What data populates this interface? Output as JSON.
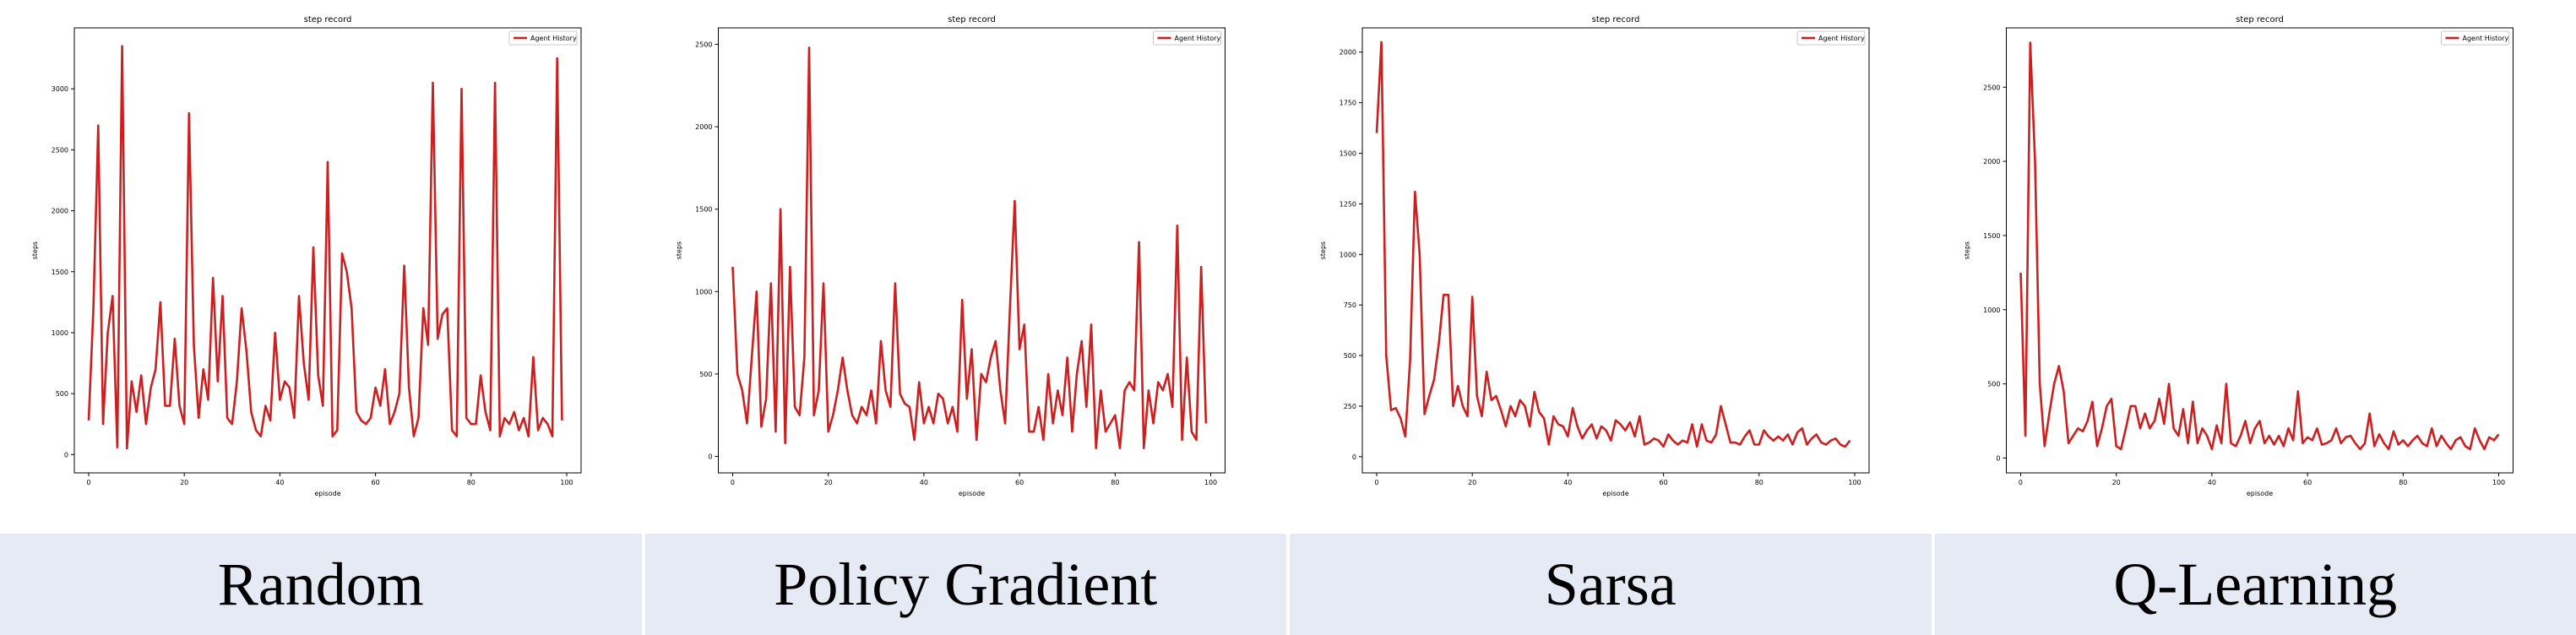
{
  "colors": {
    "series": "#cc1f1f",
    "axis": "#000000",
    "band": "#e6eaf4"
  },
  "panel_labels": [
    "Random",
    "Policy Gradient",
    "Sarsa",
    "Q-Learning"
  ],
  "chart_data": [
    {
      "type": "line",
      "title": "step record",
      "xlabel": "episode",
      "ylabel": "steps",
      "xlim": [
        -3,
        103
      ],
      "ylim": [
        -150,
        3500
      ],
      "xticks": [
        0,
        20,
        40,
        60,
        80,
        100
      ],
      "yticks": [
        0,
        500,
        1000,
        1500,
        2000,
        2500,
        3000
      ],
      "legend": "top-right",
      "series": [
        {
          "name": "Agent History",
          "y": [
            280,
            1200,
            2700,
            250,
            1000,
            1300,
            60,
            3350,
            50,
            600,
            350,
            650,
            250,
            550,
            700,
            1250,
            400,
            400,
            950,
            400,
            250,
            2800,
            900,
            300,
            700,
            450,
            1450,
            600,
            1300,
            300,
            250,
            600,
            1200,
            850,
            350,
            200,
            150,
            400,
            280,
            1000,
            450,
            600,
            550,
            300,
            1300,
            750,
            450,
            1700,
            650,
            400,
            2400,
            150,
            200,
            1650,
            1500,
            1200,
            350,
            280,
            250,
            300,
            550,
            400,
            700,
            250,
            350,
            500,
            1550,
            550,
            150,
            300,
            1200,
            900,
            3050,
            950,
            1150,
            1200,
            200,
            150,
            3000,
            300,
            250,
            250,
            650,
            350,
            200,
            3050,
            150,
            300,
            250,
            350,
            200,
            300,
            150,
            800,
            200,
            300,
            250,
            150,
            3250,
            280
          ]
        }
      ]
    },
    {
      "type": "line",
      "title": "step record",
      "xlabel": "episode",
      "ylabel": "steps",
      "xlim": [
        -3,
        103
      ],
      "ylim": [
        -100,
        2600
      ],
      "xticks": [
        0,
        20,
        40,
        60,
        80,
        100
      ],
      "yticks": [
        0,
        500,
        1000,
        1500,
        2000,
        2500
      ],
      "legend": "top-right",
      "series": [
        {
          "name": "Agent History",
          "y": [
            1150,
            500,
            400,
            200,
            600,
            1000,
            180,
            350,
            1050,
            150,
            1500,
            80,
            1150,
            300,
            250,
            600,
            2480,
            250,
            400,
            1050,
            150,
            250,
            400,
            600,
            400,
            250,
            200,
            300,
            250,
            400,
            200,
            700,
            400,
            300,
            1050,
            380,
            320,
            300,
            100,
            450,
            200,
            300,
            200,
            380,
            350,
            200,
            300,
            150,
            950,
            350,
            650,
            100,
            500,
            450,
            600,
            700,
            400,
            200,
            900,
            1550,
            650,
            800,
            150,
            150,
            300,
            100,
            500,
            200,
            400,
            250,
            600,
            150,
            500,
            700,
            300,
            800,
            50,
            400,
            150,
            200,
            250,
            50,
            400,
            450,
            400,
            1300,
            50,
            400,
            200,
            450,
            400,
            500,
            300,
            1400,
            100,
            600,
            150,
            100,
            1150,
            200
          ]
        }
      ]
    },
    {
      "type": "line",
      "title": "step record",
      "xlabel": "episode",
      "ylabel": "steps",
      "xlim": [
        -3,
        103
      ],
      "ylim": [
        -80,
        2120
      ],
      "xticks": [
        0,
        20,
        40,
        60,
        80,
        100
      ],
      "yticks": [
        0,
        250,
        500,
        750,
        1000,
        1250,
        1500,
        1750,
        2000
      ],
      "legend": "top-right",
      "series": [
        {
          "name": "Agent History",
          "y": [
            1600,
            2050,
            500,
            230,
            240,
            190,
            100,
            480,
            1310,
            1000,
            210,
            300,
            380,
            560,
            800,
            800,
            250,
            350,
            250,
            200,
            790,
            300,
            200,
            420,
            280,
            300,
            230,
            150,
            250,
            200,
            280,
            250,
            150,
            320,
            220,
            190,
            60,
            200,
            160,
            150,
            100,
            240,
            150,
            90,
            130,
            160,
            90,
            150,
            130,
            80,
            180,
            160,
            130,
            170,
            100,
            200,
            60,
            70,
            90,
            80,
            50,
            110,
            80,
            60,
            80,
            70,
            160,
            50,
            160,
            80,
            70,
            110,
            250,
            160,
            70,
            70,
            60,
            100,
            130,
            60,
            60,
            130,
            100,
            80,
            100,
            80,
            110,
            60,
            120,
            140,
            60,
            90,
            110,
            70,
            60,
            80,
            90,
            60,
            50,
            80
          ]
        }
      ]
    },
    {
      "type": "line",
      "title": "step record",
      "xlabel": "episode",
      "ylabel": "steps",
      "xlim": [
        -3,
        103
      ],
      "ylim": [
        -100,
        2900
      ],
      "xticks": [
        0,
        20,
        40,
        60,
        80,
        100
      ],
      "yticks": [
        0,
        500,
        1000,
        1500,
        2000,
        2500
      ],
      "legend": "top-right",
      "series": [
        {
          "name": "Agent History",
          "y": [
            1250,
            150,
            2800,
            2000,
            500,
            80,
            300,
            500,
            620,
            450,
            100,
            150,
            200,
            180,
            250,
            380,
            80,
            200,
            350,
            400,
            80,
            60,
            200,
            350,
            350,
            200,
            300,
            200,
            250,
            400,
            230,
            500,
            200,
            150,
            330,
            100,
            380,
            100,
            200,
            150,
            60,
            220,
            100,
            500,
            100,
            80,
            150,
            250,
            100,
            200,
            250,
            100,
            150,
            90,
            150,
            80,
            200,
            120,
            450,
            100,
            140,
            120,
            200,
            90,
            100,
            120,
            200,
            100,
            140,
            150,
            100,
            60,
            100,
            300,
            80,
            160,
            100,
            60,
            180,
            90,
            120,
            80,
            120,
            150,
            100,
            80,
            200,
            80,
            150,
            100,
            60,
            120,
            140,
            80,
            60,
            200,
            120,
            60,
            140,
            120,
            160
          ]
        }
      ]
    }
  ]
}
